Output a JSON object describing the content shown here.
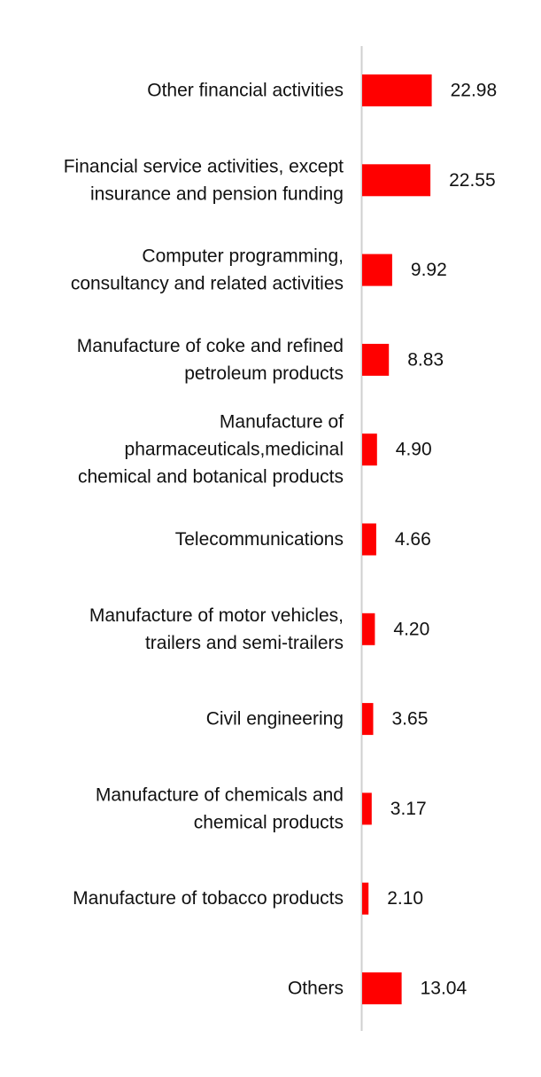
{
  "colors": {
    "bar": "#ff0000",
    "axis": "#cfcfcf",
    "text": "#111111",
    "background": "#ffffff"
  },
  "chart_data": {
    "type": "bar",
    "orientation": "horizontal",
    "title": "",
    "xlabel": "",
    "ylabel": "",
    "grid": false,
    "legend": "none",
    "xlim": [
      0,
      60
    ],
    "categories": [
      [
        "Other financial activities"
      ],
      [
        "Financial service activities, except",
        "insurance and pension funding"
      ],
      [
        "Computer programming,",
        "consultancy and related activities"
      ],
      [
        "Manufacture of coke and refined",
        "petroleum products"
      ],
      [
        "Manufacture of",
        "pharmaceuticals,medicinal",
        "chemical and botanical products"
      ],
      [
        "Telecommunications"
      ],
      [
        "Manufacture of motor vehicles,",
        "trailers and semi-trailers"
      ],
      [
        "Civil engineering"
      ],
      [
        "Manufacture of chemicals and",
        "chemical products"
      ],
      [
        "Manufacture of tobacco products"
      ],
      [
        "Others"
      ]
    ],
    "values": [
      22.98,
      22.55,
      9.92,
      8.83,
      4.9,
      4.66,
      4.2,
      3.65,
      3.17,
      2.1,
      13.04
    ],
    "value_labels": [
      "22.98",
      "22.55",
      "9.92",
      "8.83",
      "4.90",
      "4.66",
      "4.20",
      "3.65",
      "3.17",
      "2.10",
      "13.04"
    ]
  }
}
